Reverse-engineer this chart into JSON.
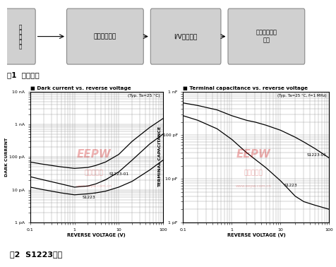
{
  "title1": "图1  系统框图",
  "title2": "图2  S1223特性",
  "chart1_title": "■ Dark current vs. reverse voltage",
  "chart1_note": "(Typ. Ta=25 °C)",
  "chart1_xlabel": "REVERSE VOLTAGE (V)",
  "chart1_ylabel": "DARK CURRENT",
  "chart1_yticks": [
    "1 pA",
    "10 pA",
    "100 pA",
    "1 nA",
    "10 nA"
  ],
  "chart1_ytick_vals": [
    1e-12,
    1e-11,
    1e-10,
    1e-09,
    1e-08
  ],
  "chart2_title": "■ Terminal capacitance vs. reverse voltage",
  "chart2_note": "(Typ. Ta=25 °C, f=1 MHz)",
  "chart2_xlabel": "REVERSE VOLTAGE (V)",
  "chart2_ylabel": "TERMINAL CAPACITANCE",
  "chart2_yticks": [
    "1 pF",
    "10 pF",
    "100 pF",
    "1 nF"
  ],
  "chart2_ytick_vals": [
    1e-12,
    1e-11,
    1e-10,
    1e-09
  ],
  "box_color": "#d0d0d0",
  "watermark_color": "#cc0000"
}
